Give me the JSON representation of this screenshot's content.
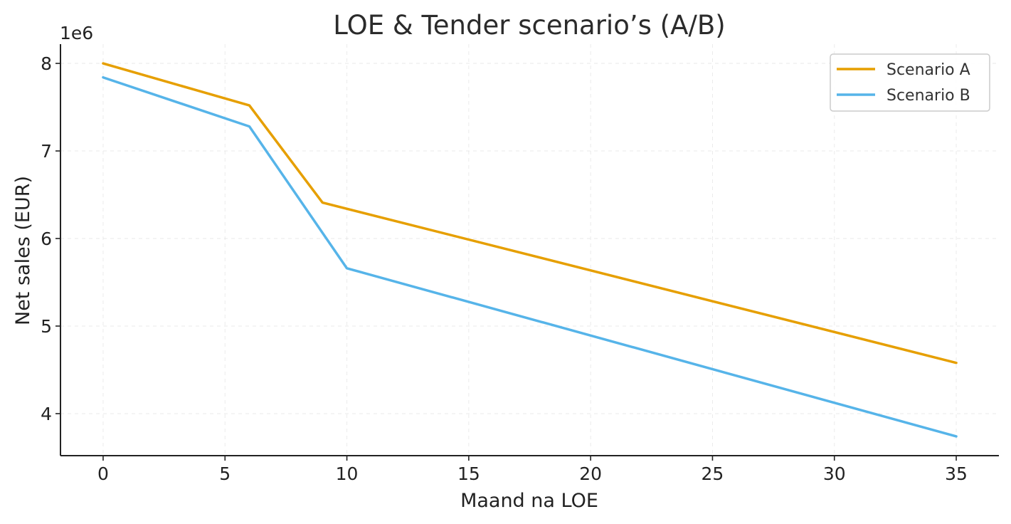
{
  "chart_data": {
    "type": "line",
    "title": "LOE & Tender scenario’s (A/B)",
    "xlabel": "Maand na LOE",
    "ylabel": "Net sales (EUR)",
    "y_offset_label": "1e6",
    "xlim": [
      -1.75,
      36.75
    ],
    "ylim": [
      3.52,
      8.22
    ],
    "x_ticks": [
      0,
      5,
      10,
      15,
      20,
      25,
      30,
      35
    ],
    "x_tick_labels": [
      "0",
      "5",
      "10",
      "15",
      "20",
      "25",
      "30",
      "35"
    ],
    "y_ticks": [
      4,
      5,
      6,
      7,
      8
    ],
    "y_tick_labels": [
      "4",
      "5",
      "6",
      "7",
      "8"
    ],
    "grid": true,
    "legend_position": "top-right",
    "series": [
      {
        "name": "Scenario A",
        "color": "#E69F00",
        "x": [
          0,
          6,
          9,
          35
        ],
        "values": [
          8.0,
          7.52,
          6.41,
          4.58
        ]
      },
      {
        "name": "Scenario B",
        "color": "#56B4E9",
        "x": [
          0,
          6,
          10,
          35
        ],
        "values": [
          7.84,
          7.28,
          5.66,
          3.74
        ]
      }
    ]
  }
}
